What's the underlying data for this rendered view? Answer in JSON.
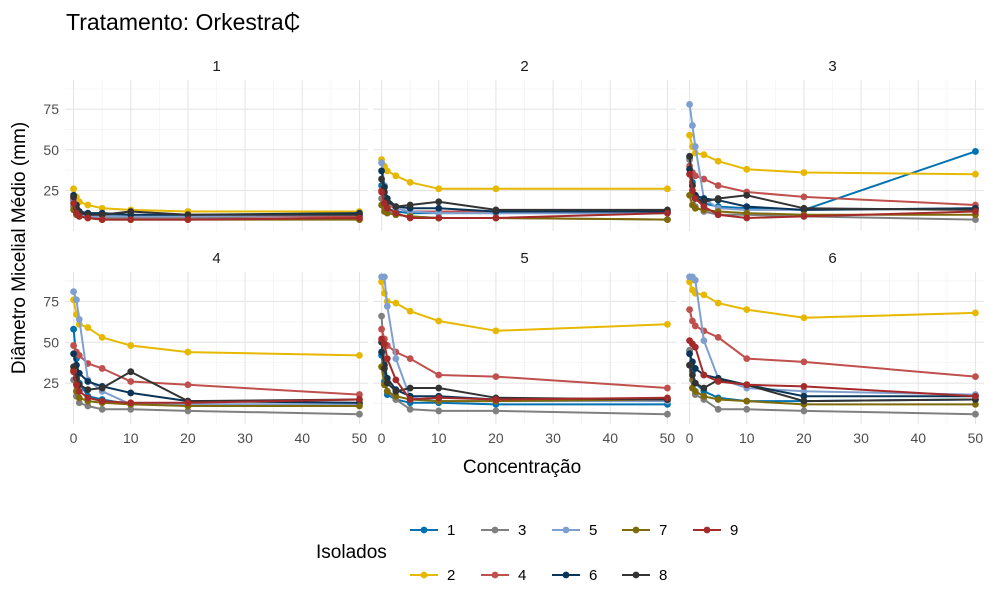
{
  "chart_data": {
    "type": "line",
    "title": "Tratamento: Orkestra₵",
    "xlabel": "Concentração",
    "ylabel": "Diâmetro Micelial Médio (mm)",
    "x": [
      0,
      0.5,
      1,
      2.5,
      5,
      10,
      20,
      50
    ],
    "x_ticks": [
      0,
      10,
      20,
      30,
      40,
      50
    ],
    "y_ticks": [
      25,
      50,
      75
    ],
    "xlim": [
      -1.5,
      51.5
    ],
    "ylim": [
      0,
      93
    ],
    "grid": true,
    "legend": {
      "title": "Isolados",
      "position": "bottom",
      "items": [
        "1",
        "3",
        "5",
        "7",
        "9",
        "2",
        "4",
        "6",
        "8"
      ]
    },
    "series_colors": {
      "1": "#0072B2",
      "2": "#E6B800",
      "3": "#808080",
      "4": "#C0504D",
      "5": "#7F9FD0",
      "6": "#0B3558",
      "7": "#7F6A0A",
      "8": "#333333",
      "9": "#A52A2A"
    },
    "panels": [
      {
        "label": "1",
        "series": [
          {
            "name": "1",
            "values": [
              19,
              14,
              11,
              10,
              10,
              9,
              9,
              9
            ]
          },
          {
            "name": "2",
            "values": [
              26,
              21,
              18,
              16,
              14,
              13,
              12,
              12
            ]
          },
          {
            "name": "3",
            "values": [
              15,
              11,
              10,
              9,
              8,
              8,
              8,
              7
            ]
          },
          {
            "name": "4",
            "values": [
              20,
              14,
              12,
              10,
              9,
              9,
              9,
              9
            ]
          },
          {
            "name": "5",
            "values": [
              18,
              12,
              10,
              9,
              9,
              9,
              9,
              10
            ]
          },
          {
            "name": "6",
            "values": [
              22,
              16,
              12,
              11,
              11,
              10,
              10,
              11
            ]
          },
          {
            "name": "7",
            "values": [
              13,
              10,
              9,
              8,
              7,
              7,
              7,
              7
            ]
          },
          {
            "name": "8",
            "values": [
              21,
              14,
              11,
              10,
              10,
              12,
              10,
              10
            ]
          },
          {
            "name": "9",
            "values": [
              17,
              11,
              9,
              8,
              7,
              7,
              7,
              8
            ]
          }
        ]
      },
      {
        "label": "2",
        "series": [
          {
            "name": "1",
            "values": [
              28,
              18,
              14,
              12,
              11,
              11,
              11,
              11
            ]
          },
          {
            "name": "2",
            "values": [
              44,
              40,
              37,
              34,
              30,
              26,
              26,
              26
            ]
          },
          {
            "name": "3",
            "values": [
              20,
              14,
              12,
              10,
              9,
              8,
              8,
              7
            ]
          },
          {
            "name": "4",
            "values": [
              25,
              19,
              16,
              14,
              12,
              12,
              12,
              12
            ]
          },
          {
            "name": "5",
            "values": [
              42,
              28,
              18,
              14,
              12,
              11,
              11,
              11
            ]
          },
          {
            "name": "6",
            "values": [
              37,
              27,
              20,
              15,
              14,
              14,
              12,
              12
            ]
          },
          {
            "name": "7",
            "values": [
              16,
              12,
              11,
              10,
              9,
              8,
              8,
              7
            ]
          },
          {
            "name": "8",
            "values": [
              32,
              24,
              18,
              15,
              16,
              18,
              13,
              13
            ]
          },
          {
            "name": "9",
            "values": [
              24,
              17,
              14,
              11,
              8,
              8,
              8,
              11
            ]
          }
        ]
      },
      {
        "label": "3",
        "series": [
          {
            "name": "1",
            "values": [
              45,
              30,
              22,
              17,
              15,
              14,
              13,
              49
            ]
          },
          {
            "name": "2",
            "values": [
              59,
              52,
              48,
              47,
              43,
              38,
              36,
              35
            ]
          },
          {
            "name": "3",
            "values": [
              44,
              24,
              15,
              12,
              10,
              10,
              9,
              7
            ]
          },
          {
            "name": "4",
            "values": [
              40,
              36,
              34,
              32,
              28,
              24,
              21,
              16
            ]
          },
          {
            "name": "5",
            "values": [
              78,
              65,
              52,
              20,
              14,
              13,
              13,
              14
            ]
          },
          {
            "name": "6",
            "values": [
              38,
              28,
              22,
              20,
              19,
              15,
              13,
              14
            ]
          },
          {
            "name": "7",
            "values": [
              22,
              16,
              14,
              13,
              12,
              11,
              10,
              10
            ]
          },
          {
            "name": "8",
            "values": [
              46,
              28,
              20,
              18,
              20,
              22,
              14,
              13
            ]
          },
          {
            "name": "9",
            "values": [
              35,
              25,
              20,
              15,
              10,
              8,
              9,
              12
            ]
          }
        ]
      },
      {
        "label": "4",
        "series": [
          {
            "name": "1",
            "values": [
              58,
              40,
              25,
              17,
              15,
              12,
              12,
              12
            ]
          },
          {
            "name": "2",
            "values": [
              76,
              67,
              61,
              59,
              53,
              48,
              44,
              42
            ]
          },
          {
            "name": "3",
            "values": [
              27,
              17,
              13,
              11,
              9,
              9,
              8,
              6
            ]
          },
          {
            "name": "4",
            "values": [
              48,
              44,
              42,
              37,
              34,
              26,
              24,
              18
            ]
          },
          {
            "name": "5",
            "values": [
              81,
              76,
              64,
              27,
              20,
              12,
              12,
              12
            ]
          },
          {
            "name": "6",
            "values": [
              43,
              36,
              31,
              26,
              23,
              19,
              14,
              13
            ]
          },
          {
            "name": "7",
            "values": [
              33,
              20,
              16,
              14,
              13,
              12,
              11,
              11
            ]
          },
          {
            "name": "8",
            "values": [
              35,
              28,
              24,
              21,
              22,
              32,
              14,
              15
            ]
          },
          {
            "name": "9",
            "values": [
              32,
              24,
              20,
              16,
              14,
              13,
              13,
              15
            ]
          }
        ]
      },
      {
        "label": "5",
        "series": [
          {
            "name": "1",
            "values": [
              42,
              26,
              18,
              15,
              13,
              13,
              12,
              12
            ]
          },
          {
            "name": "2",
            "values": [
              87,
              80,
              75,
              74,
              69,
              63,
              57,
              61
            ]
          },
          {
            "name": "3",
            "values": [
              66,
              38,
              20,
              15,
              9,
              8,
              8,
              6
            ]
          },
          {
            "name": "4",
            "values": [
              58,
              52,
              48,
              44,
              40,
              30,
              29,
              22
            ]
          },
          {
            "name": "5",
            "values": [
              90,
              90,
              72,
              40,
              16,
              14,
              14,
              14
            ]
          },
          {
            "name": "6",
            "values": [
              44,
              36,
              28,
              21,
              17,
              17,
              15,
              15
            ]
          },
          {
            "name": "7",
            "values": [
              35,
              24,
              20,
              17,
              15,
              14,
              14,
              15
            ]
          },
          {
            "name": "8",
            "values": [
              50,
              34,
              25,
              20,
              22,
              22,
              16,
              15
            ]
          },
          {
            "name": "9",
            "values": [
              52,
              49,
              40,
              27,
              15,
              16,
              15,
              16
            ]
          }
        ]
      },
      {
        "label": "6",
        "series": [
          {
            "name": "1",
            "values": [
              45,
              32,
              25,
              20,
              16,
              14,
              14,
              15
            ]
          },
          {
            "name": "2",
            "values": [
              87,
              82,
              80,
              79,
              74,
              70,
              65,
              68
            ]
          },
          {
            "name": "3",
            "values": [
              45,
              27,
              18,
              15,
              9,
              9,
              8,
              6
            ]
          },
          {
            "name": "4",
            "values": [
              70,
              63,
              60,
              57,
              53,
              40,
              38,
              29
            ]
          },
          {
            "name": "5",
            "values": [
              90,
              90,
              88,
              51,
              28,
              22,
              20,
              18
            ]
          },
          {
            "name": "6",
            "values": [
              43,
              38,
              34,
              30,
              28,
              24,
              17,
              17
            ]
          },
          {
            "name": "7",
            "values": [
              36,
              22,
              20,
              17,
              15,
              14,
              12,
              12
            ]
          },
          {
            "name": "8",
            "values": [
              36,
              30,
              25,
              22,
              27,
              24,
              14,
              15
            ]
          },
          {
            "name": "9",
            "values": [
              51,
              49,
              47,
              30,
              26,
              24,
              23,
              17
            ]
          }
        ]
      }
    ]
  }
}
